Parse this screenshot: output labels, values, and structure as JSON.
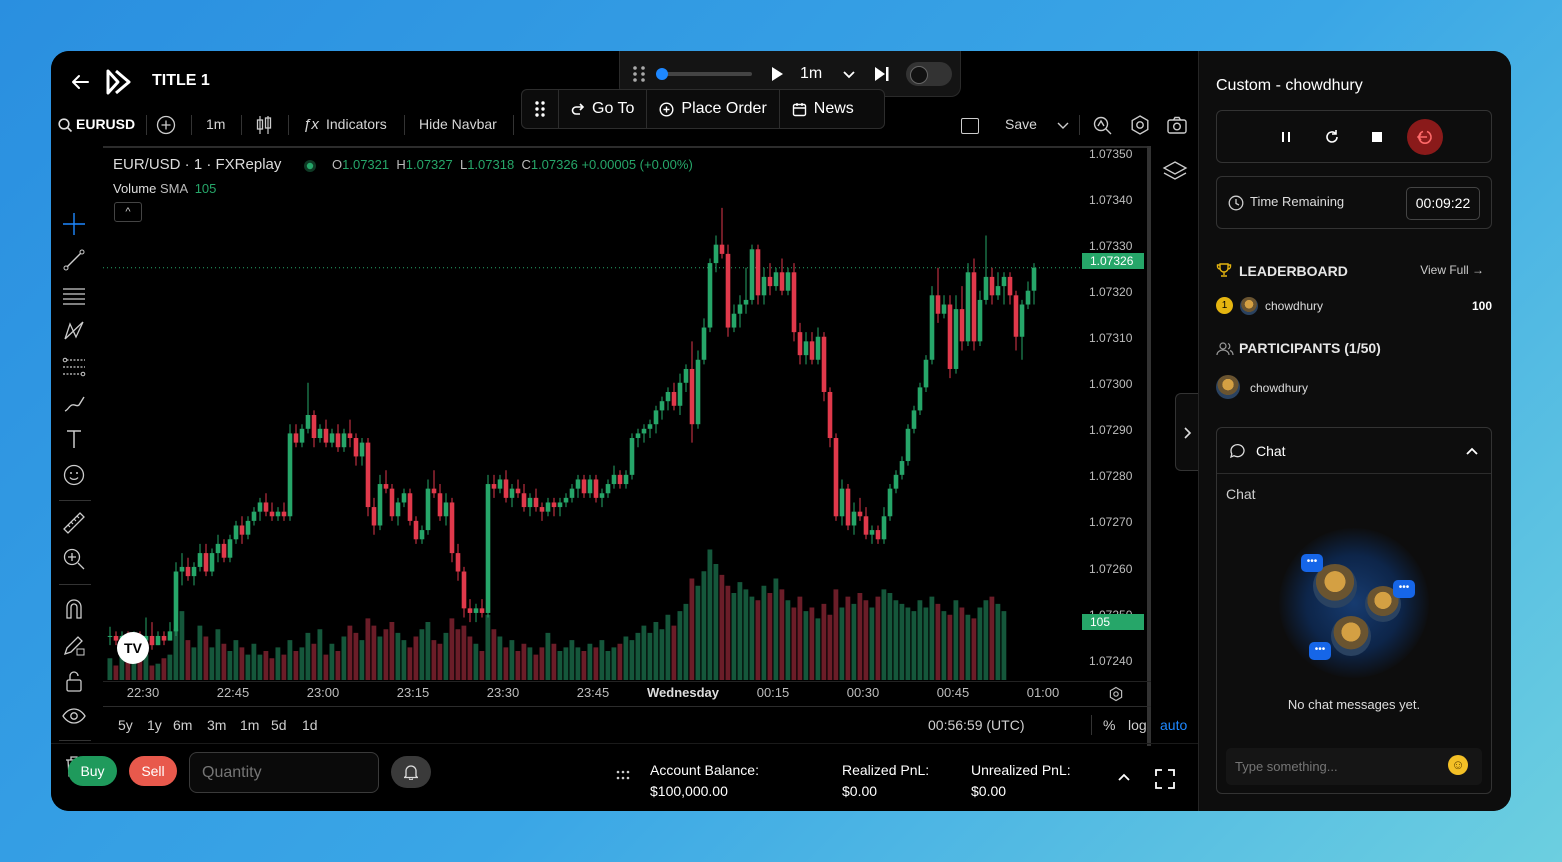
{
  "app": {
    "title": "TITLE 1"
  },
  "replay": {
    "speed": "1m"
  },
  "command_bar": {
    "go_to": "Go To",
    "place_order": "Place Order",
    "news": "News"
  },
  "toolbar": {
    "symbol": "EURUSD",
    "interval": "1m",
    "indicators": "Indicators",
    "hide_navbar": "Hide Navbar",
    "save": "Save"
  },
  "legend": {
    "pair": "EUR/USD · 1 · FXReplay",
    "o_label": "O",
    "o": "1.07321",
    "h_label": "H",
    "h": "1.07327",
    "l_label": "L",
    "l": "1.07318",
    "c_label": "C",
    "c": "1.07326",
    "change": "+0.00005 (+0.00%)",
    "volume_label": "Volume",
    "sma_label": "SMA",
    "sma_value": "105"
  },
  "price_scale": {
    "ticks": [
      "1.07350",
      "1.07340",
      "1.07330",
      "1.07320",
      "1.07310",
      "1.07300",
      "1.07290",
      "1.07280",
      "1.07270",
      "1.07260",
      "1.07250",
      "1.07240"
    ],
    "current_price": "1.07326",
    "volume_tag": "105"
  },
  "time_scale": {
    "ticks": [
      "22:30",
      "22:45",
      "23:00",
      "23:15",
      "23:30",
      "23:45",
      "Wednesday",
      "00:15",
      "00:30",
      "00:45",
      "01:00"
    ]
  },
  "range_bar": {
    "ranges": [
      "5y",
      "1y",
      "6m",
      "3m",
      "1m",
      "5d",
      "1d"
    ],
    "clock": "00:56:59 (UTC)",
    "percent": "%",
    "log": "log",
    "auto": "auto"
  },
  "order_bar": {
    "buy": "Buy",
    "sell": "Sell",
    "quantity_placeholder": "Quantity",
    "account_balance_label": "Account Balance:",
    "account_balance": "$100,000.00",
    "realized_label": "Realized PnL:",
    "realized": "$0.00",
    "unrealized_label": "Unrealized PnL:",
    "unrealized": "$0.00"
  },
  "sidebar": {
    "header": "Custom - chowdhury",
    "time_remaining_label": "Time Remaining",
    "time_remaining": "00:09:22",
    "leaderboard_title": "LEADERBOARD",
    "view_full": "View Full",
    "leaderboard": [
      {
        "rank": "1",
        "name": "chowdhury",
        "score": "100"
      }
    ],
    "participants_title": "PARTICIPANTS (1/50)",
    "participants": [
      {
        "name": "chowdhury"
      }
    ],
    "chat_title": "Chat",
    "chat_sub": "Chat",
    "chat_empty": "No chat messages yet.",
    "chat_placeholder": "Type something..."
  },
  "colors": {
    "up": "#26a669",
    "down": "#e0394b",
    "accent": "#1e88ff",
    "exit": "#8a1a1a"
  },
  "chart_data": {
    "type": "candlestick",
    "symbol": "EUR/USD",
    "interval": "1",
    "ylim": [
      1.07236,
      1.07352
    ],
    "x_start": "22:25",
    "candles": [
      [
        1.07246,
        1.07248,
        1.07244,
        1.07246
      ],
      [
        1.07246,
        1.07247,
        1.07244,
        1.07245
      ],
      [
        1.07245,
        1.07247,
        1.07244,
        1.07246
      ],
      [
        1.07246,
        1.07247,
        1.07244,
        1.07245
      ],
      [
        1.07245,
        1.07247,
        1.07244,
        1.07246
      ],
      [
        1.07246,
        1.07247,
        1.07244,
        1.07245
      ],
      [
        1.07245,
        1.0725,
        1.07245,
        1.07246
      ],
      [
        1.07246,
        1.07249,
        1.07243,
        1.07244
      ],
      [
        1.07244,
        1.07247,
        1.07244,
        1.07246
      ],
      [
        1.07246,
        1.07247,
        1.07244,
        1.07245
      ],
      [
        1.07245,
        1.07249,
        1.07245,
        1.07247
      ],
      [
        1.07247,
        1.07262,
        1.07246,
        1.0726
      ],
      [
        1.0726,
        1.07264,
        1.07257,
        1.07261
      ],
      [
        1.07261,
        1.07263,
        1.07258,
        1.07259
      ],
      [
        1.07259,
        1.07262,
        1.07257,
        1.07261
      ],
      [
        1.07261,
        1.07266,
        1.0726,
        1.07264
      ],
      [
        1.07264,
        1.07266,
        1.07259,
        1.0726
      ],
      [
        1.0726,
        1.07265,
        1.07259,
        1.07264
      ],
      [
        1.07264,
        1.07268,
        1.07262,
        1.07266
      ],
      [
        1.07266,
        1.07267,
        1.07262,
        1.07263
      ],
      [
        1.07263,
        1.07268,
        1.07262,
        1.07267
      ],
      [
        1.07267,
        1.07271,
        1.07266,
        1.0727
      ],
      [
        1.0727,
        1.07272,
        1.07266,
        1.07268
      ],
      [
        1.07268,
        1.07272,
        1.07267,
        1.07271
      ],
      [
        1.07271,
        1.07274,
        1.0727,
        1.07273
      ],
      [
        1.07273,
        1.07276,
        1.07271,
        1.07275
      ],
      [
        1.07275,
        1.07277,
        1.07272,
        1.07273
      ],
      [
        1.07273,
        1.07275,
        1.07271,
        1.07272
      ],
      [
        1.07272,
        1.07274,
        1.07271,
        1.07273
      ],
      [
        1.07273,
        1.07275,
        1.07271,
        1.07272
      ],
      [
        1.07272,
        1.07292,
        1.07271,
        1.0729
      ],
      [
        1.0729,
        1.07292,
        1.07287,
        1.07288
      ],
      [
        1.07288,
        1.07292,
        1.07287,
        1.07291
      ],
      [
        1.07291,
        1.07301,
        1.0729,
        1.07294
      ],
      [
        1.07294,
        1.07295,
        1.07287,
        1.07289
      ],
      [
        1.07289,
        1.07292,
        1.07288,
        1.07291
      ],
      [
        1.07291,
        1.07293,
        1.07287,
        1.07288
      ],
      [
        1.07288,
        1.07291,
        1.07287,
        1.0729
      ],
      [
        1.0729,
        1.07292,
        1.07286,
        1.07287
      ],
      [
        1.07287,
        1.07291,
        1.07286,
        1.0729
      ],
      [
        1.0729,
        1.07293,
        1.07287,
        1.07289
      ],
      [
        1.07289,
        1.0729,
        1.07283,
        1.07285
      ],
      [
        1.07285,
        1.07289,
        1.07283,
        1.07288
      ],
      [
        1.07288,
        1.07289,
        1.07272,
        1.07274
      ],
      [
        1.07274,
        1.07276,
        1.07268,
        1.0727
      ],
      [
        1.0727,
        1.07281,
        1.07269,
        1.07279
      ],
      [
        1.07279,
        1.07282,
        1.07277,
        1.07278
      ],
      [
        1.07278,
        1.07279,
        1.07271,
        1.07272
      ],
      [
        1.07272,
        1.07276,
        1.0727,
        1.07275
      ],
      [
        1.07275,
        1.07278,
        1.07274,
        1.07277
      ],
      [
        1.07277,
        1.07278,
        1.0727,
        1.07271
      ],
      [
        1.07271,
        1.07272,
        1.07266,
        1.07267
      ],
      [
        1.07267,
        1.0727,
        1.07266,
        1.07269
      ],
      [
        1.07269,
        1.0728,
        1.07268,
        1.07278
      ],
      [
        1.07278,
        1.07282,
        1.07276,
        1.07277
      ],
      [
        1.07277,
        1.07279,
        1.07271,
        1.07272
      ],
      [
        1.07272,
        1.07277,
        1.0727,
        1.07275
      ],
      [
        1.07275,
        1.07276,
        1.07262,
        1.07264
      ],
      [
        1.07264,
        1.07266,
        1.07258,
        1.0726
      ],
      [
        1.0726,
        1.07261,
        1.0725,
        1.07252
      ],
      [
        1.07252,
        1.07254,
        1.07249,
        1.07251
      ],
      [
        1.07251,
        1.07253,
        1.07249,
        1.07252
      ],
      [
        1.07252,
        1.07254,
        1.0725,
        1.07251
      ],
      [
        1.07251,
        1.07281,
        1.0725,
        1.07279
      ],
      [
        1.07279,
        1.07281,
        1.07276,
        1.07278
      ],
      [
        1.07278,
        1.07281,
        1.07277,
        1.0728
      ],
      [
        1.0728,
        1.07282,
        1.07275,
        1.07276
      ],
      [
        1.07276,
        1.07279,
        1.07274,
        1.07278
      ],
      [
        1.07278,
        1.0728,
        1.07276,
        1.07277
      ],
      [
        1.07277,
        1.07279,
        1.07273,
        1.07274
      ],
      [
        1.07274,
        1.07277,
        1.07272,
        1.07276
      ],
      [
        1.07276,
        1.07278,
        1.07273,
        1.07274
      ],
      [
        1.07274,
        1.07275,
        1.07271,
        1.07273
      ],
      [
        1.07273,
        1.07276,
        1.07272,
        1.07275
      ],
      [
        1.07275,
        1.07276,
        1.07272,
        1.07274
      ],
      [
        1.07274,
        1.07276,
        1.07272,
        1.07275
      ],
      [
        1.07275,
        1.07277,
        1.07274,
        1.07276
      ],
      [
        1.07276,
        1.07279,
        1.07275,
        1.07278
      ],
      [
        1.07278,
        1.07281,
        1.07276,
        1.0728
      ],
      [
        1.0728,
        1.07281,
        1.07276,
        1.07277
      ],
      [
        1.07277,
        1.07281,
        1.07276,
        1.0728
      ],
      [
        1.0728,
        1.07281,
        1.07275,
        1.07276
      ],
      [
        1.07276,
        1.07278,
        1.07274,
        1.07277
      ],
      [
        1.07277,
        1.0728,
        1.07276,
        1.07279
      ],
      [
        1.07279,
        1.07283,
        1.07278,
        1.07281
      ],
      [
        1.07281,
        1.07282,
        1.07278,
        1.07279
      ],
      [
        1.07279,
        1.07282,
        1.07278,
        1.07281
      ],
      [
        1.07281,
        1.0729,
        1.0728,
        1.07289
      ],
      [
        1.07289,
        1.07291,
        1.07287,
        1.0729
      ],
      [
        1.0729,
        1.07292,
        1.07288,
        1.07291
      ],
      [
        1.07291,
        1.07293,
        1.07289,
        1.07292
      ],
      [
        1.07292,
        1.07296,
        1.0729,
        1.07295
      ],
      [
        1.07295,
        1.07298,
        1.07293,
        1.07297
      ],
      [
        1.07297,
        1.073,
        1.07295,
        1.07299
      ],
      [
        1.07299,
        1.07301,
        1.07295,
        1.07296
      ],
      [
        1.07296,
        1.07303,
        1.07294,
        1.07301
      ],
      [
        1.07301,
        1.07305,
        1.07299,
        1.07304
      ],
      [
        1.07304,
        1.0731,
        1.07288,
        1.07292
      ],
      [
        1.07292,
        1.07308,
        1.07291,
        1.07306
      ],
      [
        1.07306,
        1.07315,
        1.07305,
        1.07313
      ],
      [
        1.07313,
        1.07328,
        1.07312,
        1.07327
      ],
      [
        1.07327,
        1.07333,
        1.07325,
        1.07331
      ],
      [
        1.07331,
        1.07339,
        1.07328,
        1.07329
      ],
      [
        1.07329,
        1.07331,
        1.07311,
        1.07313
      ],
      [
        1.07313,
        1.07318,
        1.07312,
        1.07316
      ],
      [
        1.07316,
        1.0732,
        1.07313,
        1.07318
      ],
      [
        1.07318,
        1.07326,
        1.07316,
        1.07319
      ],
      [
        1.07319,
        1.07331,
        1.07318,
        1.0733
      ],
      [
        1.0733,
        1.07331,
        1.07318,
        1.0732
      ],
      [
        1.0732,
        1.07326,
        1.07318,
        1.07324
      ],
      [
        1.07324,
        1.07327,
        1.0732,
        1.07322
      ],
      [
        1.07322,
        1.07326,
        1.07321,
        1.07325
      ],
      [
        1.07325,
        1.07328,
        1.0732,
        1.07321
      ],
      [
        1.07321,
        1.07326,
        1.0732,
        1.07325
      ],
      [
        1.07325,
        1.07327,
        1.0731,
        1.07312
      ],
      [
        1.07312,
        1.07314,
        1.07305,
        1.07307
      ],
      [
        1.07307,
        1.07312,
        1.07305,
        1.0731
      ],
      [
        1.0731,
        1.07312,
        1.07305,
        1.07306
      ],
      [
        1.07306,
        1.07313,
        1.07305,
        1.07311
      ],
      [
        1.07311,
        1.07312,
        1.07297,
        1.07299
      ],
      [
        1.07299,
        1.073,
        1.07287,
        1.07289
      ],
      [
        1.07289,
        1.0729,
        1.07271,
        1.07272
      ],
      [
        1.07272,
        1.0728,
        1.0727,
        1.07278
      ],
      [
        1.07278,
        1.07279,
        1.07269,
        1.0727
      ],
      [
        1.0727,
        1.07275,
        1.07268,
        1.07273
      ],
      [
        1.07273,
        1.07276,
        1.07271,
        1.07272
      ],
      [
        1.07272,
        1.07274,
        1.07267,
        1.07268
      ],
      [
        1.07268,
        1.0727,
        1.07266,
        1.07269
      ],
      [
        1.07269,
        1.0727,
        1.07266,
        1.07267
      ],
      [
        1.07267,
        1.07274,
        1.07266,
        1.07272
      ],
      [
        1.07272,
        1.07279,
        1.07271,
        1.07278
      ],
      [
        1.07278,
        1.07282,
        1.07277,
        1.07281
      ],
      [
        1.07281,
        1.07285,
        1.0728,
        1.07284
      ],
      [
        1.07284,
        1.07292,
        1.07283,
        1.07291
      ],
      [
        1.07291,
        1.07296,
        1.0729,
        1.07295
      ],
      [
        1.07295,
        1.07301,
        1.07294,
        1.073
      ],
      [
        1.073,
        1.07307,
        1.07299,
        1.07306
      ],
      [
        1.07306,
        1.07322,
        1.07305,
        1.0732
      ],
      [
        1.0732,
        1.07326,
        1.07314,
        1.07316
      ],
      [
        1.07316,
        1.0732,
        1.07315,
        1.07318
      ],
      [
        1.07318,
        1.0732,
        1.07302,
        1.07304
      ],
      [
        1.07304,
        1.0732,
        1.07303,
        1.07317
      ],
      [
        1.07317,
        1.07322,
        1.07308,
        1.0731
      ],
      [
        1.0731,
        1.07327,
        1.07309,
        1.07325
      ],
      [
        1.07325,
        1.07328,
        1.07308,
        1.0731
      ],
      [
        1.0731,
        1.07321,
        1.07309,
        1.07319
      ],
      [
        1.07319,
        1.07333,
        1.07318,
        1.07324
      ],
      [
        1.07324,
        1.07326,
        1.07318,
        1.0732
      ],
      [
        1.0732,
        1.07325,
        1.07319,
        1.07322
      ],
      [
        1.07322,
        1.07325,
        1.07318,
        1.07324
      ],
      [
        1.07324,
        1.07325,
        1.07318,
        1.0732
      ],
      [
        1.0732,
        1.07321,
        1.07308,
        1.07311
      ],
      [
        1.07311,
        1.07319,
        1.07306,
        1.07318
      ],
      [
        1.07318,
        1.07323,
        1.07317,
        1.07321
      ],
      [
        1.07321,
        1.07327,
        1.07318,
        1.07326
      ]
    ],
    "volume": [
      12,
      8,
      18,
      12,
      10,
      11,
      14,
      8,
      9,
      12,
      14,
      28,
      38,
      22,
      18,
      30,
      24,
      18,
      28,
      20,
      16,
      22,
      18,
      14,
      20,
      14,
      16,
      12,
      18,
      14,
      22,
      16,
      18,
      26,
      20,
      28,
      14,
      20,
      16,
      24,
      30,
      26,
      22,
      34,
      30,
      24,
      28,
      32,
      26,
      22,
      18,
      24,
      28,
      32,
      22,
      20,
      26,
      34,
      28,
      30,
      24,
      20,
      16,
      36,
      28,
      24,
      18,
      22,
      16,
      20,
      18,
      14,
      18,
      26,
      20,
      16,
      18,
      22,
      18,
      16,
      20,
      18,
      22,
      16,
      18,
      20,
      24,
      22,
      26,
      30,
      26,
      32,
      28,
      36,
      30,
      38,
      42,
      56,
      52,
      60,
      72,
      64,
      58,
      52,
      48,
      54,
      50,
      46,
      44,
      52,
      48,
      56,
      50,
      44,
      40,
      46,
      38,
      40,
      34,
      42,
      36,
      50,
      40,
      46,
      42,
      48,
      44,
      40,
      46,
      50,
      48,
      44,
      42,
      40,
      38,
      44,
      40,
      46,
      42,
      38,
      36,
      44,
      40,
      36,
      34,
      40,
      44,
      46,
      42,
      38
    ]
  }
}
